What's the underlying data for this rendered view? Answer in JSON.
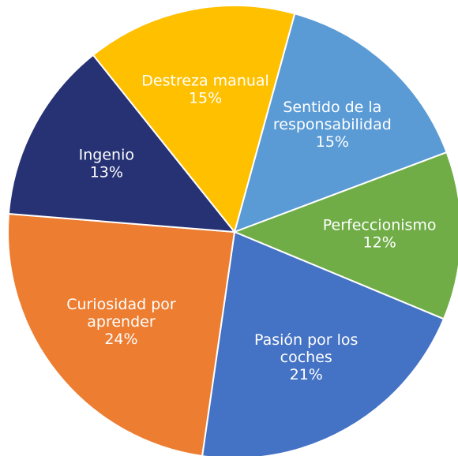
{
  "chart_data": {
    "type": "pie",
    "categories": [
      [
        "Sentido de la",
        "responsabilidad"
      ],
      [
        "Perfeccionismo"
      ],
      [
        "Pasión por los",
        "coches"
      ],
      [
        "Curiosidad por",
        "aprender"
      ],
      [
        "Ingenio"
      ],
      [
        "Destreza manual"
      ]
    ],
    "values": [
      15,
      12,
      21,
      24,
      13,
      15
    ],
    "value_labels": [
      "15%",
      "12%",
      "21%",
      "24%",
      "13%",
      "15%"
    ],
    "colors": [
      "#5b9bd5",
      "#70ad47",
      "#4472c4",
      "#ed7d31",
      "#263274",
      "#ffc000"
    ]
  }
}
